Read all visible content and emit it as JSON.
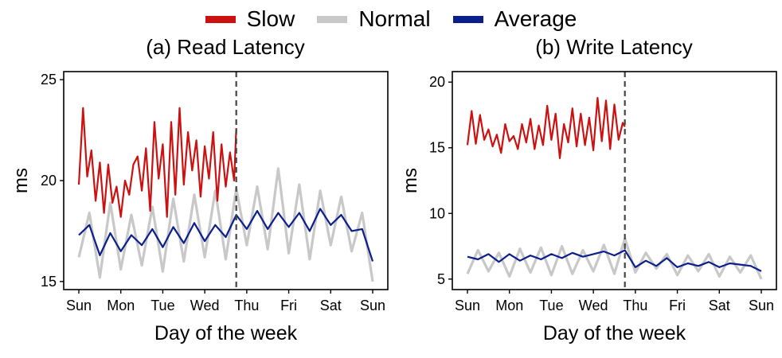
{
  "legend": {
    "slow_label": "Slow",
    "normal_label": "Normal",
    "average_label": "Average"
  },
  "colors": {
    "slow": "#cc1111",
    "normal": "#c8c8c8",
    "average": "#0b1f8c"
  },
  "chart_data": [
    {
      "type": "line",
      "title": "(a) Read Latency",
      "xlabel": "Day of the week",
      "ylabel": "ms",
      "ylim": [
        14.6,
        25.4
      ],
      "yticks": [
        15,
        20,
        25
      ],
      "xlim": [
        0,
        7
      ],
      "xticks": [
        "Sun",
        "Mon",
        "Tue",
        "Wed",
        "Thu",
        "Fri",
        "Sat",
        "Sun"
      ],
      "divider_x": 3.75,
      "grid": false,
      "series": [
        {
          "name": "Slow",
          "x": [
            0,
            0.1,
            0.2,
            0.3,
            0.4,
            0.5,
            0.6,
            0.7,
            0.8,
            0.9,
            1.0,
            1.1,
            1.2,
            1.3,
            1.4,
            1.5,
            1.6,
            1.7,
            1.8,
            1.9,
            2.0,
            2.1,
            2.2,
            2.3,
            2.4,
            2.5,
            2.6,
            2.7,
            2.8,
            2.9,
            3.0,
            3.1,
            3.2,
            3.3,
            3.4,
            3.5,
            3.6,
            3.7,
            3.75
          ],
          "values": [
            19.8,
            23.6,
            20.2,
            21.5,
            19.0,
            20.9,
            18.4,
            20.8,
            18.9,
            19.7,
            18.2,
            20.0,
            19.3,
            20.8,
            21.2,
            19.5,
            21.6,
            18.5,
            22.9,
            20.1,
            21.8,
            18.2,
            22.9,
            19.3,
            23.6,
            19.8,
            22.4,
            20.5,
            22.0,
            19.2,
            21.7,
            20.1,
            22.4,
            19.0,
            21.8,
            19.7,
            21.4,
            20.0,
            22.6
          ]
        },
        {
          "name": "Average",
          "x": [
            0,
            0.25,
            0.5,
            0.75,
            1.0,
            1.25,
            1.5,
            1.75,
            2.0,
            2.25,
            2.5,
            2.75,
            3.0,
            3.25,
            3.5,
            3.75,
            4.0,
            4.25,
            4.5,
            4.75,
            5.0,
            5.25,
            5.5,
            5.75,
            6.0,
            6.25,
            6.5,
            6.75,
            7.0
          ],
          "values": [
            17.3,
            17.8,
            16.3,
            17.4,
            16.5,
            17.3,
            16.8,
            17.6,
            16.7,
            17.7,
            16.9,
            17.9,
            17.0,
            17.8,
            17.2,
            18.3,
            17.6,
            18.5,
            17.6,
            18.4,
            17.7,
            18.4,
            17.5,
            18.6,
            17.8,
            18.3,
            17.5,
            17.6,
            16.0
          ]
        },
        {
          "name": "Normal",
          "x": [
            0,
            0.25,
            0.5,
            0.75,
            1.0,
            1.25,
            1.5,
            1.75,
            2.0,
            2.25,
            2.5,
            2.75,
            3.0,
            3.25,
            3.5,
            3.75,
            4.0,
            4.25,
            4.5,
            4.75,
            5.0,
            5.25,
            5.5,
            5.75,
            6.0,
            6.25,
            6.5,
            6.75,
            7.0
          ],
          "values": [
            16.2,
            18.4,
            15.2,
            18.9,
            15.6,
            18.3,
            15.8,
            18.7,
            15.5,
            19.1,
            16.0,
            19.3,
            16.2,
            19.5,
            16.1,
            19.6,
            16.8,
            19.7,
            16.6,
            20.6,
            16.4,
            19.8,
            16.1,
            19.5,
            16.8,
            19.2,
            16.5,
            18.4,
            15.0
          ]
        }
      ]
    },
    {
      "type": "line",
      "title": "(b) Write Latency",
      "xlabel": "Day of the week",
      "ylabel": "ms",
      "ylim": [
        4.2,
        20.8
      ],
      "yticks": [
        5,
        10,
        15,
        20
      ],
      "xlim": [
        0,
        7
      ],
      "xticks": [
        "Sun",
        "Mon",
        "Tue",
        "Wed",
        "Thu",
        "Fri",
        "Sat",
        "Sun"
      ],
      "divider_x": 3.75,
      "grid": false,
      "series": [
        {
          "name": "Slow",
          "x": [
            0,
            0.1,
            0.2,
            0.3,
            0.4,
            0.5,
            0.6,
            0.7,
            0.8,
            0.9,
            1.0,
            1.1,
            1.2,
            1.3,
            1.4,
            1.5,
            1.6,
            1.7,
            1.8,
            1.9,
            2.0,
            2.1,
            2.2,
            2.3,
            2.4,
            2.5,
            2.6,
            2.7,
            2.8,
            2.9,
            3.0,
            3.1,
            3.2,
            3.3,
            3.4,
            3.5,
            3.6,
            3.7,
            3.75
          ],
          "values": [
            15.2,
            17.8,
            15.3,
            17.5,
            15.6,
            16.4,
            15.1,
            16.0,
            14.6,
            16.8,
            15.5,
            15.9,
            14.9,
            16.8,
            15.4,
            17.2,
            14.9,
            16.7,
            15.2,
            18.2,
            15.6,
            17.6,
            14.2,
            16.8,
            15.4,
            18.0,
            15.1,
            17.6,
            15.2,
            17.3,
            14.8,
            18.8,
            15.5,
            18.6,
            14.9,
            18.3,
            15.6,
            16.9,
            16.6
          ]
        },
        {
          "name": "Average",
          "x": [
            0,
            0.25,
            0.5,
            0.75,
            1.0,
            1.25,
            1.5,
            1.75,
            2.0,
            2.25,
            2.5,
            2.75,
            3.0,
            3.25,
            3.5,
            3.75,
            4.0,
            4.25,
            4.5,
            4.75,
            5.0,
            5.25,
            5.5,
            5.75,
            6.0,
            6.25,
            6.5,
            6.75,
            7.0
          ],
          "values": [
            6.7,
            6.5,
            6.9,
            6.3,
            6.9,
            6.4,
            6.8,
            6.5,
            6.9,
            6.6,
            7.0,
            6.7,
            6.9,
            7.1,
            6.8,
            7.2,
            5.9,
            6.4,
            6.0,
            6.6,
            5.9,
            6.2,
            6.0,
            6.3,
            5.9,
            6.2,
            6.1,
            6.0,
            5.6
          ]
        },
        {
          "name": "Normal",
          "x": [
            0,
            0.25,
            0.5,
            0.75,
            1.0,
            1.25,
            1.5,
            1.75,
            2.0,
            2.25,
            2.5,
            2.75,
            3.0,
            3.25,
            3.5,
            3.75,
            4.0,
            4.25,
            4.5,
            4.75,
            5.0,
            5.25,
            5.5,
            5.75,
            6.0,
            6.25,
            6.5,
            6.75,
            7.0
          ],
          "values": [
            5.4,
            7.2,
            5.6,
            7.0,
            5.2,
            7.3,
            5.5,
            7.4,
            5.3,
            7.5,
            5.4,
            7.2,
            5.6,
            7.6,
            5.4,
            8.1,
            5.5,
            7.0,
            5.8,
            6.9,
            5.3,
            6.8,
            5.6,
            6.9,
            5.2,
            6.7,
            5.5,
            6.8,
            5.0
          ]
        }
      ]
    }
  ]
}
